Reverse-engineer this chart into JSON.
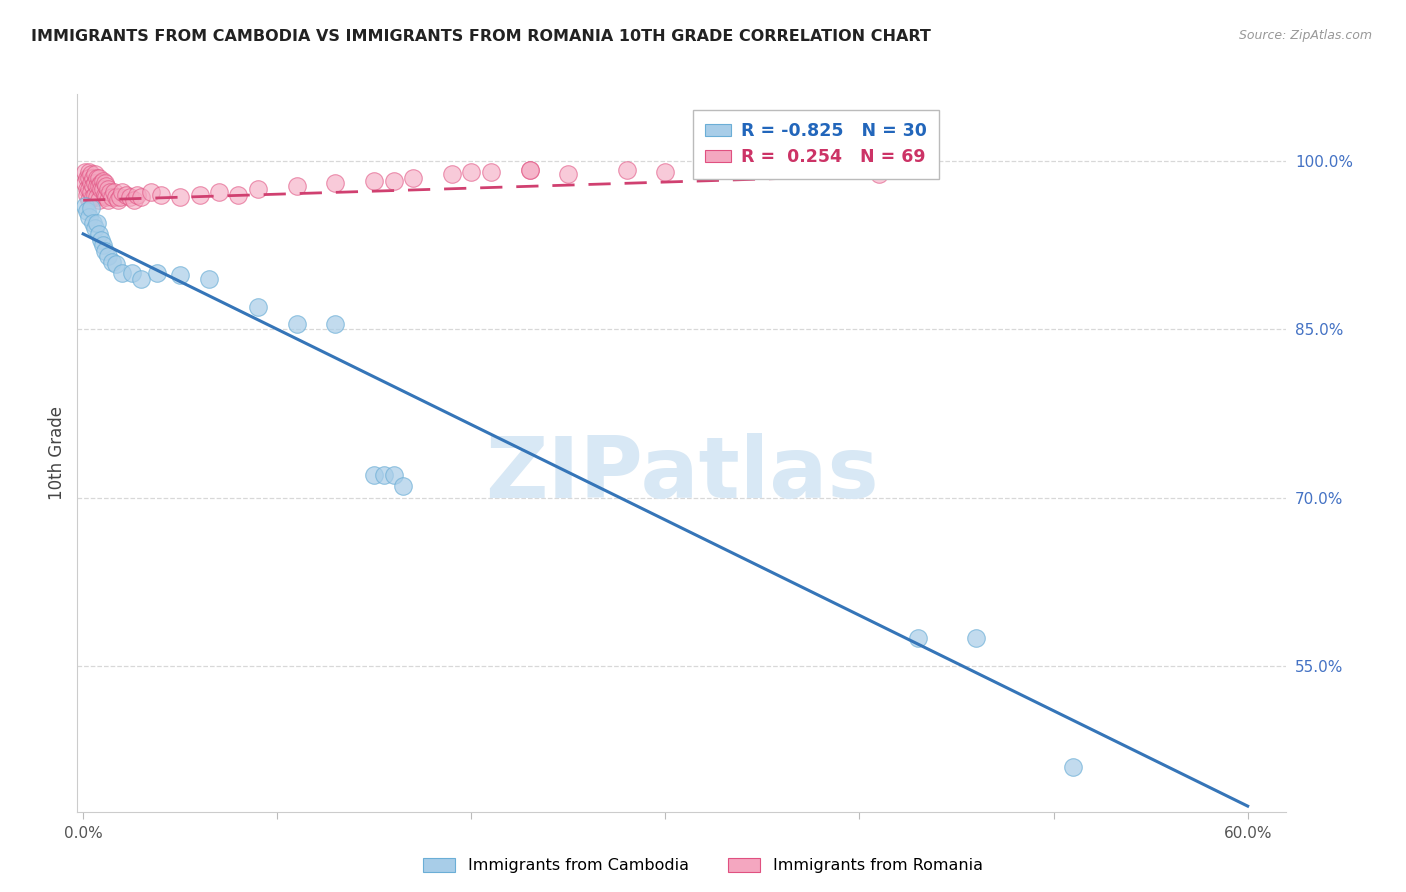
{
  "title": "IMMIGRANTS FROM CAMBODIA VS IMMIGRANTS FROM ROMANIA 10TH GRADE CORRELATION CHART",
  "source": "Source: ZipAtlas.com",
  "ylabel": "10th Grade",
  "right_yticks": [
    0.55,
    0.7,
    0.85,
    1.0
  ],
  "right_yticklabels": [
    "55.0%",
    "70.0%",
    "85.0%",
    "100.0%"
  ],
  "xlim": [
    -0.003,
    0.62
  ],
  "ylim": [
    0.42,
    1.06
  ],
  "legend_r_cambodia": "-0.825",
  "legend_n_cambodia": "30",
  "legend_r_romania": " 0.254",
  "legend_n_romania": "69",
  "cambodia_color": "#a8cde8",
  "cambodia_edge": "#6baed6",
  "romania_color": "#f4a7c0",
  "romania_edge": "#e05080",
  "trendline_cambodia_color": "#3575b8",
  "trendline_romania_color": "#d04070",
  "grid_color": "#d8d8d8",
  "watermark": "ZIPatlas",
  "watermark_color": "#d8e8f5",
  "background_color": "#ffffff",
  "scatter_cambodia_x": [
    0.001,
    0.002,
    0.003,
    0.004,
    0.005,
    0.006,
    0.007,
    0.008,
    0.009,
    0.01,
    0.011,
    0.013,
    0.015,
    0.017,
    0.02,
    0.025,
    0.03,
    0.038,
    0.05,
    0.065,
    0.09,
    0.11,
    0.13,
    0.15,
    0.155,
    0.16,
    0.165,
    0.43,
    0.46,
    0.51
  ],
  "scatter_cambodia_y": [
    0.96,
    0.955,
    0.95,
    0.958,
    0.945,
    0.94,
    0.945,
    0.935,
    0.93,
    0.925,
    0.92,
    0.915,
    0.91,
    0.908,
    0.9,
    0.9,
    0.895,
    0.9,
    0.898,
    0.895,
    0.87,
    0.855,
    0.855,
    0.72,
    0.72,
    0.72,
    0.71,
    0.575,
    0.575,
    0.46
  ],
  "scatter_romania_x": [
    0.001,
    0.001,
    0.002,
    0.002,
    0.002,
    0.003,
    0.003,
    0.003,
    0.003,
    0.004,
    0.004,
    0.004,
    0.005,
    0.005,
    0.005,
    0.006,
    0.006,
    0.006,
    0.007,
    0.007,
    0.007,
    0.008,
    0.008,
    0.008,
    0.009,
    0.009,
    0.01,
    0.01,
    0.011,
    0.011,
    0.012,
    0.012,
    0.013,
    0.013,
    0.014,
    0.015,
    0.016,
    0.017,
    0.018,
    0.019,
    0.02,
    0.022,
    0.024,
    0.026,
    0.028,
    0.03,
    0.035,
    0.04,
    0.05,
    0.06,
    0.07,
    0.08,
    0.09,
    0.11,
    0.13,
    0.15,
    0.17,
    0.19,
    0.21,
    0.23,
    0.16,
    0.2,
    0.23,
    0.25,
    0.28,
    0.3,
    0.33,
    0.36,
    0.41
  ],
  "scatter_romania_y": [
    0.99,
    0.98,
    0.985,
    0.975,
    0.97,
    0.99,
    0.985,
    0.975,
    0.965,
    0.988,
    0.98,
    0.972,
    0.985,
    0.978,
    0.968,
    0.988,
    0.98,
    0.97,
    0.985,
    0.978,
    0.968,
    0.985,
    0.978,
    0.965,
    0.98,
    0.975,
    0.982,
    0.975,
    0.98,
    0.97,
    0.978,
    0.968,
    0.975,
    0.965,
    0.972,
    0.968,
    0.972,
    0.968,
    0.965,
    0.968,
    0.972,
    0.97,
    0.968,
    0.965,
    0.97,
    0.968,
    0.972,
    0.97,
    0.968,
    0.97,
    0.972,
    0.97,
    0.975,
    0.978,
    0.98,
    0.982,
    0.985,
    0.988,
    0.99,
    0.992,
    0.982,
    0.99,
    0.992,
    0.988,
    0.992,
    0.99,
    0.992,
    0.995,
    0.988
  ],
  "trendline_cam_x0": 0.0,
  "trendline_cam_x1": 0.6,
  "trendline_cam_y0": 0.935,
  "trendline_cam_y1": 0.425,
  "trendline_rom_x0": 0.0,
  "trendline_rom_x1": 0.37,
  "trendline_rom_y0": 0.965,
  "trendline_rom_y1": 0.985
}
